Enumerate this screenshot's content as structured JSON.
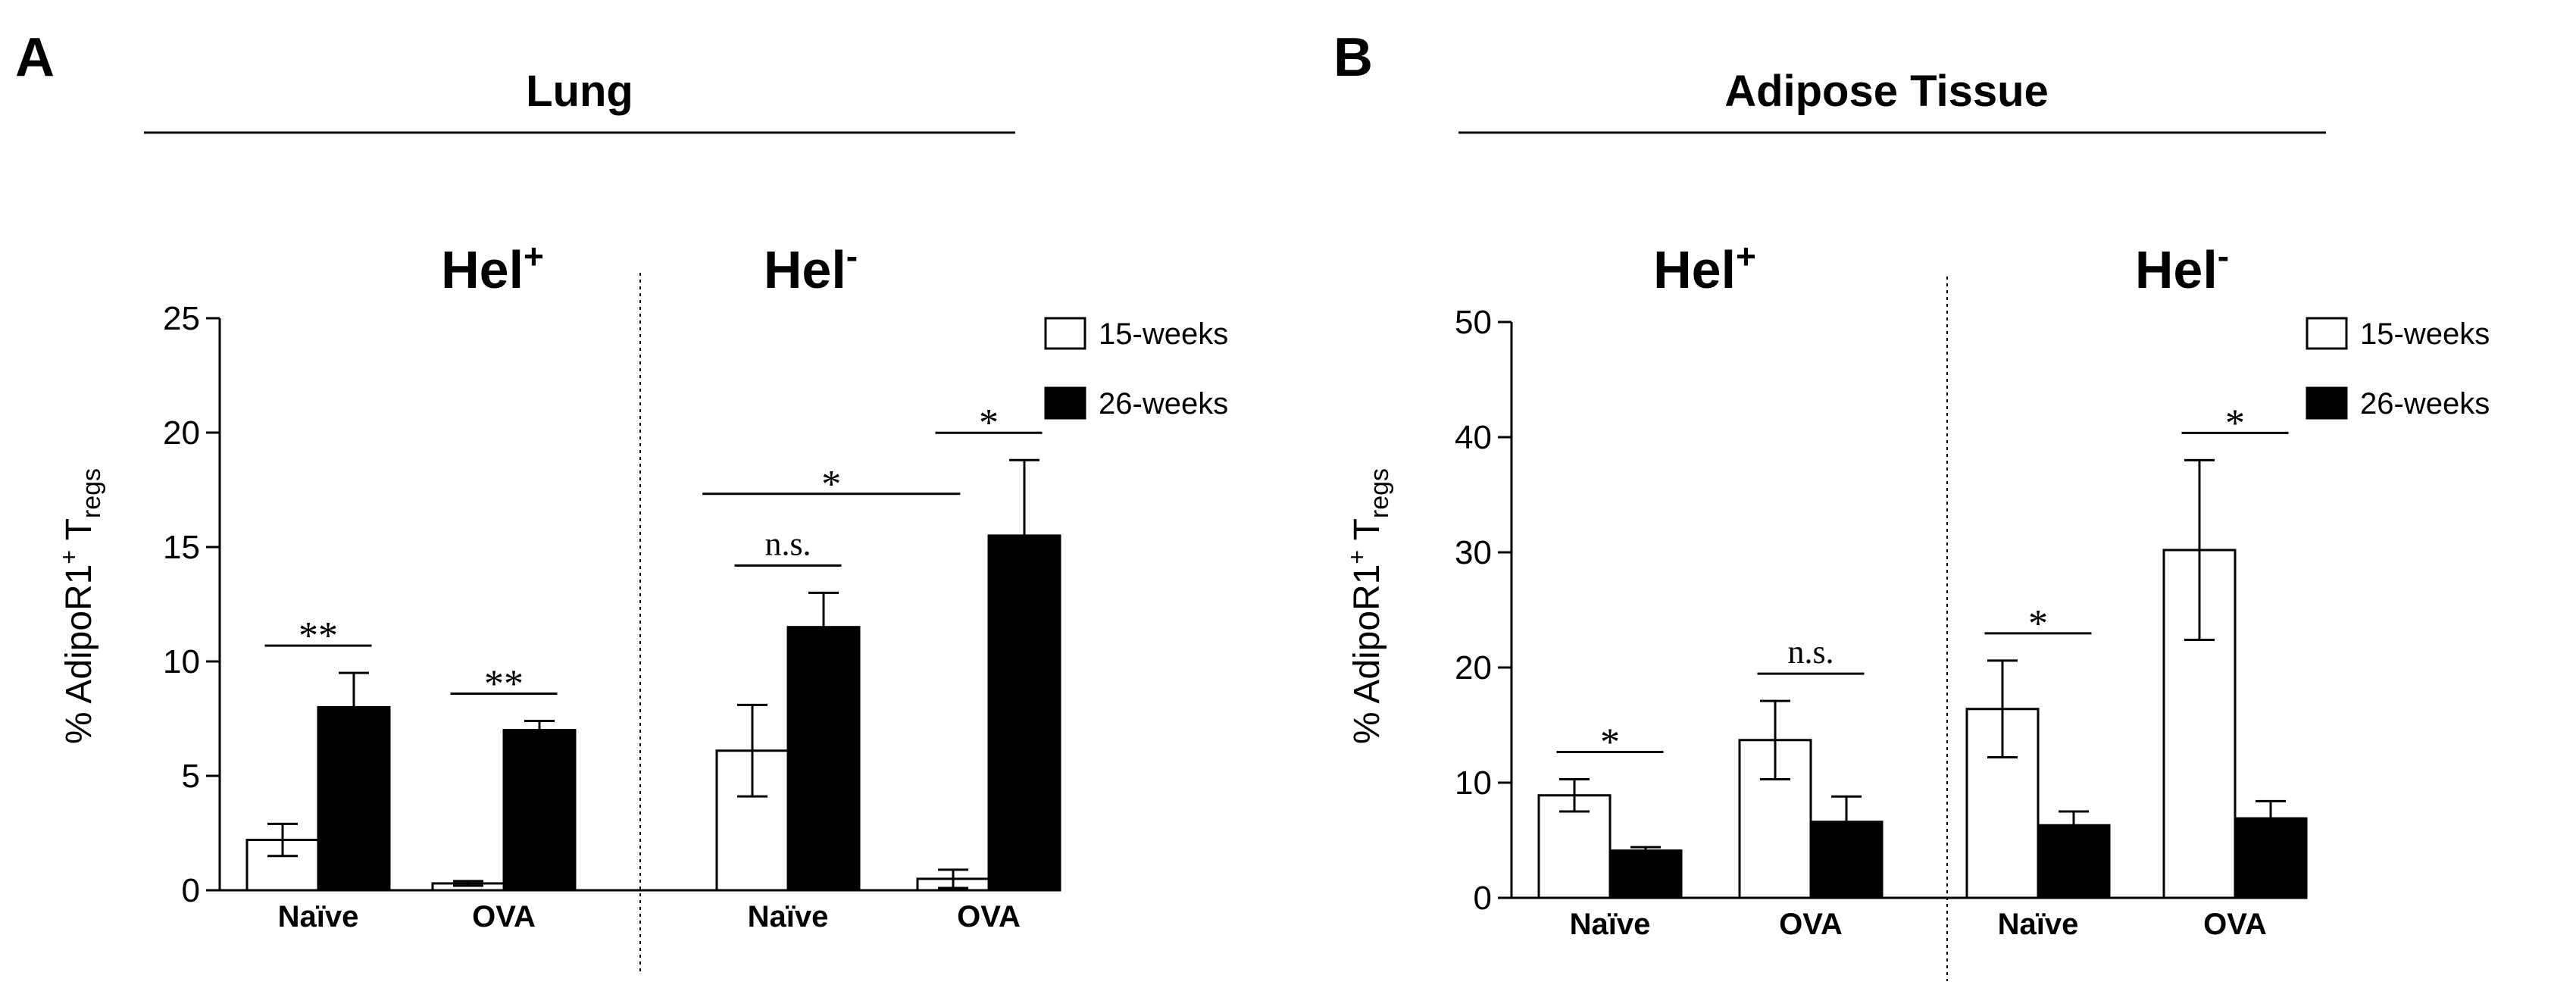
{
  "chart_data": [
    {
      "type": "bar",
      "panel": "A",
      "title": "Lung",
      "ylabel": "% AdipoR1",
      "ylabel_sup": "+",
      "ylabel_tail": " T",
      "ylabel_sub": "regs",
      "ylim": [
        0,
        25
      ],
      "yticks": [
        "0",
        "5",
        "10",
        "15",
        "20",
        "25"
      ],
      "group_labels": [
        {
          "text": "Hel",
          "sup": "+"
        },
        {
          "text": "Hel",
          "sup": "-"
        }
      ],
      "categories": [
        "Naïve",
        "OVA",
        "Naïve",
        "OVA"
      ],
      "series": [
        {
          "name": "15-weeks",
          "values": [
            2.2,
            0.3,
            6.1,
            0.5
          ],
          "errors": [
            0.7,
            0.1,
            2.0,
            0.4
          ]
        },
        {
          "name": "26-weeks",
          "values": [
            8.0,
            7.0,
            11.5,
            15.5
          ],
          "errors": [
            1.5,
            0.4,
            1.5,
            3.3
          ]
        }
      ],
      "annotations": [
        {
          "text": "**",
          "type": "within",
          "category": 0
        },
        {
          "text": "**",
          "type": "within",
          "category": 1
        },
        {
          "text": "n.s.",
          "type": "within",
          "category": 2
        },
        {
          "text": "*",
          "type": "within",
          "category": 3
        },
        {
          "text": "*",
          "type": "between",
          "from_category": 2,
          "to_category": 3,
          "series": 0
        }
      ],
      "legend": {
        "position": "top-right"
      }
    },
    {
      "type": "bar",
      "panel": "B",
      "title": "Adipose Tissue",
      "ylabel": "% AdipoR1",
      "ylabel_sup": "+",
      "ylabel_tail": " T",
      "ylabel_sub": "regs",
      "ylim": [
        0,
        50
      ],
      "yticks": [
        "0",
        "10",
        "20",
        "30",
        "40",
        "50"
      ],
      "group_labels": [
        {
          "text": "Hel",
          "sup": "+"
        },
        {
          "text": "Hel",
          "sup": "-"
        }
      ],
      "categories": [
        "Naïve",
        "OVA",
        "Naïve",
        "OVA"
      ],
      "series": [
        {
          "name": "15-weeks",
          "values": [
            8.9,
            13.7,
            16.4,
            30.2
          ],
          "errors": [
            1.4,
            3.4,
            4.2,
            7.8
          ]
        },
        {
          "name": "26-weeks",
          "values": [
            4.1,
            6.6,
            6.3,
            6.9
          ],
          "errors": [
            0.3,
            2.2,
            1.2,
            1.5
          ]
        }
      ],
      "annotations": [
        {
          "text": "*",
          "type": "within",
          "category": 0
        },
        {
          "text": "n.s.",
          "type": "within",
          "category": 1
        },
        {
          "text": "*",
          "type": "within",
          "category": 2
        },
        {
          "text": "*",
          "type": "within",
          "category": 3
        }
      ],
      "legend": {
        "position": "top-right"
      }
    }
  ],
  "colors": {
    "series_0_fill": "#ffffff",
    "series_1_fill": "#000000",
    "stroke": "#000000"
  }
}
